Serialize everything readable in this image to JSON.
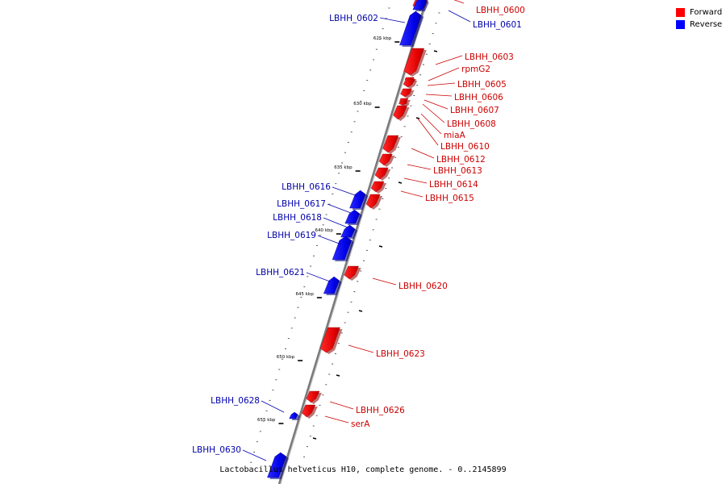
{
  "caption": "Lactobacillus helveticus H10, complete genome. - 0..2145899",
  "legend": [
    {
      "label": "Forward",
      "color": "#ff0000"
    },
    {
      "label": "Reverse",
      "color": "#0000ff"
    }
  ],
  "scale_labels": [
    "625 kbp",
    "630 kbp",
    "635 kbp",
    "640 kbp",
    "645 kbp",
    "650 kbp",
    "655 kbp"
  ],
  "genes": [
    {
      "name": "LBHH_0600",
      "strand": "forward"
    },
    {
      "name": "LBHH_0601",
      "strand": "reverse"
    },
    {
      "name": "LBHH_0602",
      "strand": "reverse"
    },
    {
      "name": "LBHH_0603",
      "strand": "forward"
    },
    {
      "name": "rpmG2",
      "strand": "forward"
    },
    {
      "name": "LBHH_0605",
      "strand": "forward"
    },
    {
      "name": "LBHH_0606",
      "strand": "forward"
    },
    {
      "name": "LBHH_0607",
      "strand": "forward"
    },
    {
      "name": "LBHH_0608",
      "strand": "forward"
    },
    {
      "name": "miaA",
      "strand": "forward"
    },
    {
      "name": "LBHH_0610",
      "strand": "forward"
    },
    {
      "name": "LBHH_0612",
      "strand": "forward"
    },
    {
      "name": "LBHH_0613",
      "strand": "forward"
    },
    {
      "name": "LBHH_0614",
      "strand": "forward"
    },
    {
      "name": "LBHH_0615",
      "strand": "forward"
    },
    {
      "name": "LBHH_0616",
      "strand": "reverse"
    },
    {
      "name": "LBHH_0617",
      "strand": "reverse"
    },
    {
      "name": "LBHH_0618",
      "strand": "reverse"
    },
    {
      "name": "LBHH_0619",
      "strand": "reverse"
    },
    {
      "name": "LBHH_0620",
      "strand": "forward"
    },
    {
      "name": "LBHH_0621",
      "strand": "reverse"
    },
    {
      "name": "LBHH_0623",
      "strand": "forward"
    },
    {
      "name": "LBHH_0626",
      "strand": "forward"
    },
    {
      "name": "serA",
      "strand": "forward"
    },
    {
      "name": "LBHH_0628",
      "strand": "reverse"
    },
    {
      "name": "LBHH_0630",
      "strand": "reverse"
    }
  ]
}
